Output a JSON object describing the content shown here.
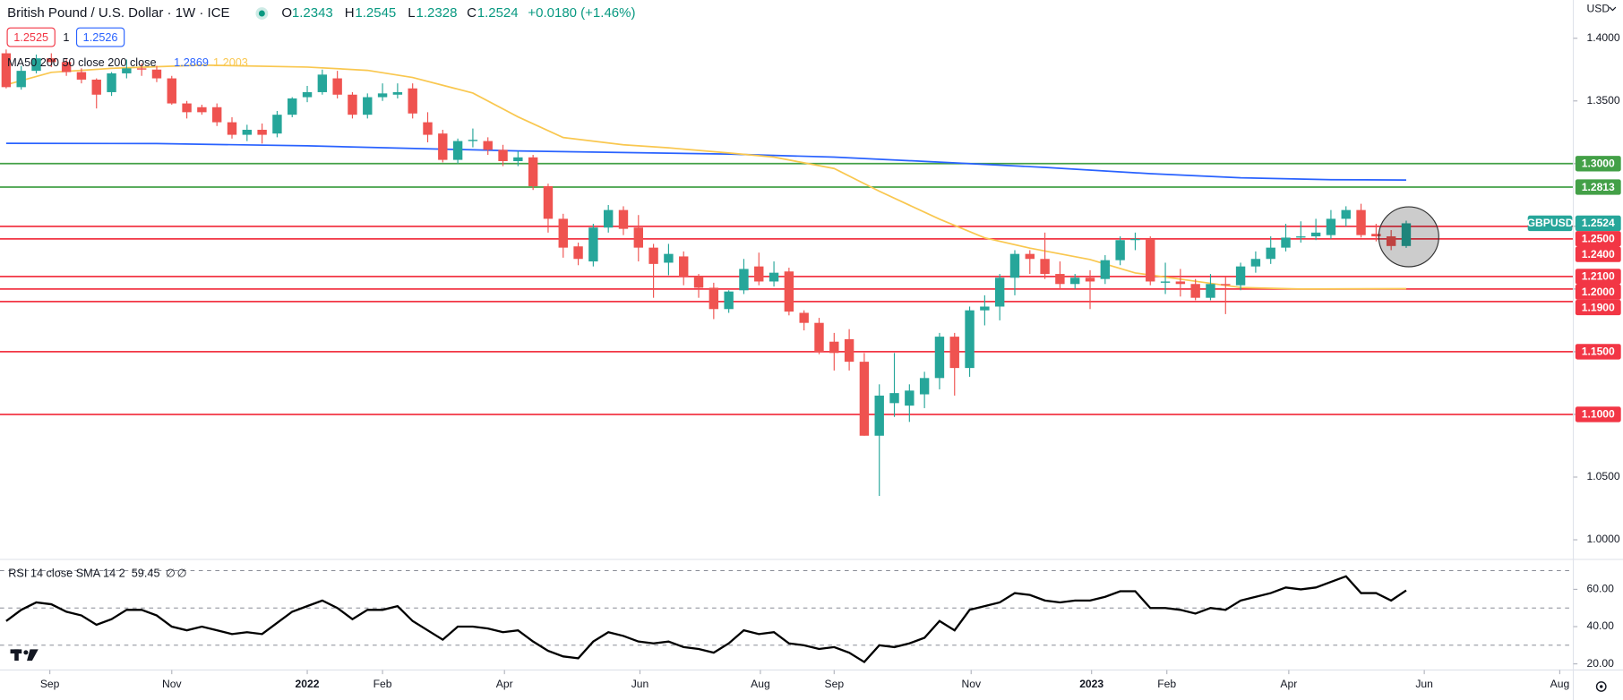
{
  "header": {
    "title": "British Pound / U.S. Dollar · 1W · ICE",
    "open_label": "O",
    "open": 1.2343,
    "high_label": "H",
    "high": 1.2545,
    "low_label": "L",
    "low": 1.2328,
    "close_label": "C",
    "close": 1.2524,
    "change": "+0.0180 (+1.46%)",
    "sell": 1.2525,
    "spread": 1,
    "buy": 1.2526,
    "currency": "USD"
  },
  "chart_data": [
    {
      "type": "candlestick",
      "indicator_label": "MA50 200 50 close 200 close",
      "up_color": "#26a69a",
      "down_color": "#ef5350",
      "open": [
        1.388,
        1.361,
        1.374,
        1.384,
        1.381,
        1.373,
        1.367,
        1.357,
        1.372,
        1.376,
        1.375,
        1.368,
        1.348,
        1.345,
        1.345,
        1.333,
        1.323,
        1.327,
        1.324,
        1.339,
        1.353,
        1.357,
        1.368,
        1.355,
        1.339,
        1.353,
        1.355,
        1.36,
        1.333,
        1.324,
        1.303,
        1.318,
        1.318,
        1.311,
        1.302,
        1.305,
        1.282,
        1.256,
        1.234,
        1.222,
        1.249,
        1.263,
        1.249,
        1.233,
        1.221,
        1.226,
        1.21,
        1.201,
        1.184,
        1.199,
        1.218,
        1.206,
        1.214,
        1.181,
        1.173,
        1.158,
        1.16,
        1.142,
        1.083,
        1.109,
        1.107,
        1.116,
        1.129,
        1.162,
        1.137,
        1.183,
        1.186,
        1.209,
        1.228,
        1.224,
        1.212,
        1.204,
        1.209,
        1.208,
        1.223,
        1.239,
        1.24,
        1.205,
        1.206,
        1.204,
        1.193,
        1.204,
        1.203,
        1.218,
        1.224,
        1.233,
        1.241,
        1.242,
        1.243,
        1.256,
        1.263,
        1.244,
        1.242,
        1.2343
      ],
      "high": [
        1.391,
        1.378,
        1.387,
        1.388,
        1.384,
        1.376,
        1.368,
        1.373,
        1.383,
        1.38,
        1.378,
        1.37,
        1.35,
        1.347,
        1.348,
        1.337,
        1.331,
        1.332,
        1.342,
        1.353,
        1.362,
        1.375,
        1.374,
        1.357,
        1.356,
        1.364,
        1.364,
        1.364,
        1.341,
        1.327,
        1.32,
        1.328,
        1.321,
        1.315,
        1.31,
        1.307,
        1.284,
        1.26,
        1.237,
        1.252,
        1.267,
        1.266,
        1.259,
        1.236,
        1.236,
        1.23,
        1.212,
        1.205,
        1.199,
        1.224,
        1.229,
        1.222,
        1.217,
        1.183,
        1.177,
        1.165,
        1.168,
        1.149,
        1.124,
        1.149,
        1.124,
        1.134,
        1.165,
        1.165,
        1.186,
        1.195,
        1.212,
        1.231,
        1.231,
        1.245,
        1.222,
        1.212,
        1.215,
        1.227,
        1.242,
        1.245,
        1.242,
        1.221,
        1.216,
        1.208,
        1.212,
        1.21,
        1.221,
        1.23,
        1.242,
        1.252,
        1.254,
        1.256,
        1.263,
        1.266,
        1.268,
        1.252,
        1.247,
        1.2545
      ],
      "low": [
        1.36,
        1.359,
        1.372,
        1.377,
        1.37,
        1.364,
        1.344,
        1.354,
        1.368,
        1.37,
        1.365,
        1.347,
        1.336,
        1.339,
        1.33,
        1.32,
        1.318,
        1.316,
        1.321,
        1.337,
        1.349,
        1.355,
        1.352,
        1.336,
        1.336,
        1.35,
        1.352,
        1.336,
        1.317,
        1.301,
        1.3,
        1.313,
        1.307,
        1.298,
        1.298,
        1.279,
        1.245,
        1.225,
        1.219,
        1.218,
        1.245,
        1.243,
        1.222,
        1.193,
        1.211,
        1.203,
        1.193,
        1.176,
        1.181,
        1.196,
        1.203,
        1.202,
        1.179,
        1.167,
        1.148,
        1.135,
        1.135,
        1.083,
        1.035,
        1.098,
        1.094,
        1.105,
        1.12,
        1.115,
        1.13,
        1.171,
        1.175,
        1.195,
        1.212,
        1.208,
        1.2,
        1.2,
        1.184,
        1.204,
        1.219,
        1.231,
        1.203,
        1.196,
        1.194,
        1.191,
        1.191,
        1.18,
        1.199,
        1.213,
        1.22,
        1.23,
        1.237,
        1.239,
        1.24,
        1.25,
        1.241,
        1.238,
        1.231,
        1.2328
      ],
      "close": [
        1.361,
        1.374,
        1.384,
        1.381,
        1.373,
        1.367,
        1.355,
        1.372,
        1.376,
        1.375,
        1.368,
        1.348,
        1.341,
        1.341,
        1.333,
        1.323,
        1.327,
        1.323,
        1.339,
        1.352,
        1.357,
        1.371,
        1.355,
        1.339,
        1.353,
        1.356,
        1.357,
        1.34,
        1.323,
        1.303,
        1.318,
        1.319,
        1.311,
        1.302,
        1.305,
        1.282,
        1.256,
        1.233,
        1.224,
        1.249,
        1.263,
        1.248,
        1.233,
        1.22,
        1.228,
        1.21,
        1.201,
        1.184,
        1.198,
        1.216,
        1.206,
        1.213,
        1.182,
        1.173,
        1.15,
        1.149,
        1.142,
        1.083,
        1.115,
        1.117,
        1.119,
        1.129,
        1.162,
        1.137,
        1.183,
        1.186,
        1.209,
        1.228,
        1.224,
        1.212,
        1.204,
        1.209,
        1.206,
        1.223,
        1.239,
        1.24,
        1.206,
        1.206,
        1.204,
        1.193,
        1.204,
        1.203,
        1.218,
        1.224,
        1.233,
        1.241,
        1.242,
        1.245,
        1.256,
        1.263,
        1.243,
        1.242,
        1.2343,
        1.2524
      ],
      "series": [
        {
          "color": "#2962ff",
          "legend_value": 1.2869,
          "x": [
            0,
            10,
            20,
            34,
            48,
            55,
            62,
            69,
            76,
            82,
            88,
            93
          ],
          "values": [
            1.3162,
            1.316,
            1.3142,
            1.3101,
            1.3076,
            1.3052,
            1.3012,
            1.297,
            1.292,
            1.2887,
            1.2872,
            1.2869
          ]
        },
        {
          "color": "#f9c74f",
          "legend_value": 1.2003,
          "x": [
            0,
            3,
            7,
            13,
            20,
            24,
            27,
            31,
            34,
            37,
            41,
            44,
            48,
            51,
            55,
            58,
            62,
            65,
            68,
            72,
            75,
            79,
            82,
            86,
            93
          ],
          "values": [
            1.3629,
            1.3728,
            1.376,
            1.3786,
            1.377,
            1.3744,
            1.3687,
            1.3563,
            1.3373,
            1.3208,
            1.315,
            1.3126,
            1.3085,
            1.3052,
            1.2961,
            1.278,
            1.2557,
            1.2408,
            1.2326,
            1.2235,
            1.2128,
            1.2062,
            1.2012,
            1.2,
            1.2003
          ]
        }
      ],
      "levels": [
        {
          "value": 1.3,
          "label": "1.3000",
          "color": "#43a047"
        },
        {
          "value": 1.2813,
          "color": "#43a047"
        },
        {
          "value": 1.25,
          "label": "1.2500",
          "color": "#f23645"
        },
        {
          "value": 1.24,
          "label": "1.2400",
          "color": "#f23645"
        },
        {
          "value": 1.21,
          "label": "1.2100",
          "color": "#f23645"
        },
        {
          "value": 1.2,
          "label": "1.2000",
          "color": "#f23645"
        },
        {
          "value": 1.19,
          "label": "1.1900",
          "color": "#f23645"
        },
        {
          "value": 1.15,
          "label": "1.1500",
          "color": "#f23645"
        },
        {
          "value": 1.1,
          "label": "1.1000",
          "color": "#f23645"
        }
      ],
      "last_price": {
        "label": "GBPUSD",
        "value": 1.2524,
        "color": "#26a69a"
      },
      "xlim": [
        -0.41,
        104.1
      ],
      "xticks": [
        {
          "value": 2.9,
          "label": "Sep"
        },
        {
          "value": 11,
          "label": "Nov"
        },
        {
          "value": 20,
          "label": "2022"
        },
        {
          "value": 25,
          "label": "Feb"
        },
        {
          "value": 33.1,
          "label": "Apr"
        },
        {
          "value": 42.1,
          "label": "Jun"
        },
        {
          "value": 50.1,
          "label": "Aug"
        },
        {
          "value": 55,
          "label": "Sep"
        },
        {
          "value": 64.1,
          "label": "Nov"
        },
        {
          "value": 72.1,
          "label": "2023"
        },
        {
          "value": 77.1,
          "label": "Feb"
        },
        {
          "value": 85.2,
          "label": "Apr"
        },
        {
          "value": 94.2,
          "label": "Jun"
        },
        {
          "value": 103.2,
          "label": "Aug"
        }
      ],
      "ylim": [
        0.9852,
        1.4305
      ],
      "yticks": [
        {
          "value": 1.4,
          "label": "1.4000"
        },
        {
          "value": 1.35,
          "label": "1.3500"
        },
        {
          "value": 1.3,
          "label": "1.3000"
        },
        {
          "value": 1.25,
          "label": "1.2500"
        },
        {
          "value": 1.2,
          "label": "1.2000"
        },
        {
          "value": 1.15,
          "label": "1.1500"
        },
        {
          "value": 1.1,
          "label": "1.1000"
        },
        {
          "value": 1.05,
          "label": "1.0500"
        },
        {
          "value": 1.0,
          "label": "1.0000"
        }
      ]
    },
    {
      "type": "line",
      "title": "RSI 14 close SMA 14 2",
      "value": 59.45,
      "extra_labels": [
        "∅",
        "∅"
      ],
      "color": "#000000",
      "values": [
        43,
        49,
        53,
        52,
        48,
        46,
        41,
        44,
        49,
        49,
        46,
        40,
        38,
        40,
        38,
        36,
        37,
        36,
        42,
        48,
        51,
        54,
        50,
        44,
        49,
        49,
        51,
        43,
        38,
        33,
        40,
        40,
        39,
        37,
        38,
        32,
        27,
        24,
        23,
        32,
        37,
        35,
        32,
        31,
        32,
        29,
        28,
        26,
        31,
        38,
        36,
        37,
        31,
        30,
        28,
        29,
        26,
        21,
        30,
        29,
        31,
        34,
        43,
        38,
        49,
        51,
        53,
        58,
        57,
        54,
        53,
        54,
        54,
        56,
        59,
        59,
        50,
        50,
        49,
        47,
        50,
        49,
        54,
        56,
        58,
        61,
        60,
        61,
        64,
        67,
        58,
        58,
        54,
        59.45
      ],
      "xlim": [
        -0.41,
        104.1
      ],
      "ylim": [
        16.7,
        76.1
      ],
      "yticks": [
        {
          "value": 60,
          "label": "60.00"
        },
        {
          "value": 40,
          "label": "40.00"
        },
        {
          "value": 20,
          "label": "20.00"
        }
      ],
      "bands": [
        70,
        50,
        30
      ]
    }
  ]
}
